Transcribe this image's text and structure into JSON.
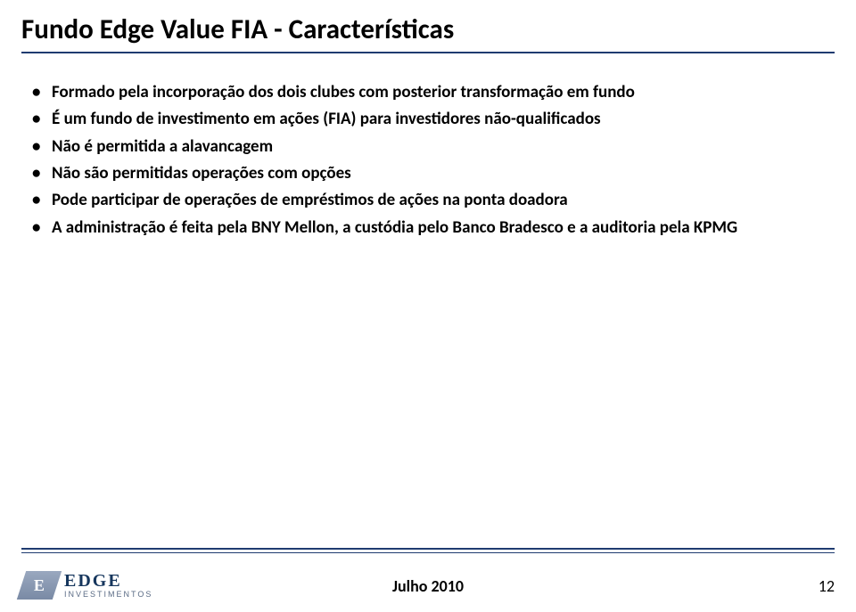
{
  "title": "Fundo Edge Value FIA - Características",
  "bullets": [
    "Formado pela incorporação dos dois clubes com posterior transformação em fundo",
    "É um fundo de investimento em ações (FIA) para investidores não-qualificados",
    "Não é permitida a alavancagem",
    "Não são permitidas operações com opções",
    "Pode participar de operações de empréstimos de ações na ponta doadora",
    "A administração é feita pela BNY Mellon, a custódia pelo Banco Bradesco e a auditoria pela KPMG"
  ],
  "footer": {
    "date": "Julho 2010",
    "page": "12"
  },
  "logo": {
    "mark_letter": "E",
    "main": "EDGE",
    "sub": "INVESTIMENTOS"
  },
  "colors": {
    "accent": "#1f3b70",
    "text": "#000000",
    "bg": "#ffffff"
  }
}
